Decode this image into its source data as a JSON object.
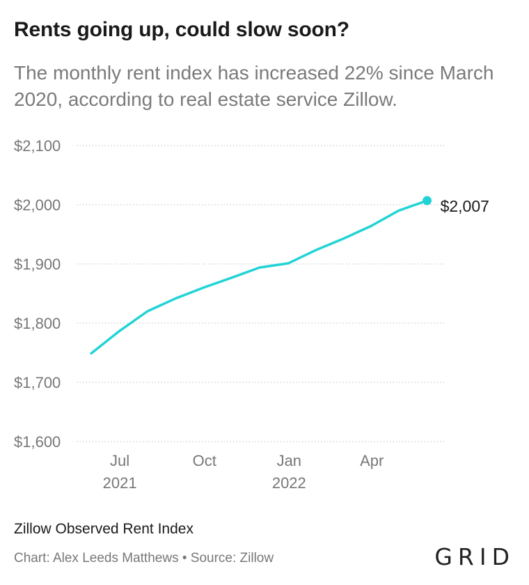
{
  "title": "Rents going up, could slow soon?",
  "subtitle": "The monthly rent index has increased 22% since March 2020, according to real estate service Zillow.",
  "footer": {
    "series_label": "Zillow Observed Rent Index",
    "credit": "Chart: Alex Leeds Matthews • Source: Zillow",
    "logo": "GRID"
  },
  "colors": {
    "line": "#22d3d6",
    "grid": "#cccccc"
  },
  "chart_data": {
    "type": "line",
    "title": "Rents going up, could slow soon?",
    "subtitle": "The monthly rent index has increased 22% since March 2020, according to real estate service Zillow.",
    "ylim": [
      1600,
      2100
    ],
    "xlim": [
      "2021-05-15",
      "2022-06-20"
    ],
    "yticks": [
      1600,
      1700,
      1800,
      1900,
      2000,
      2100
    ],
    "ytick_labels": [
      "$1,600",
      "$1,700",
      "$1,800",
      "$1,900",
      "$2,000",
      "$2,100"
    ],
    "xticks": [
      {
        "date": "2021-07-01",
        "label": "Jul",
        "sublabel": "2021"
      },
      {
        "date": "2021-10-01",
        "label": "Oct",
        "sublabel": ""
      },
      {
        "date": "2022-01-01",
        "label": "Jan",
        "sublabel": "2022"
      },
      {
        "date": "2022-04-01",
        "label": "Apr",
        "sublabel": ""
      }
    ],
    "grid": true,
    "series": [
      {
        "name": "Zillow Observed Rent Index",
        "x": [
          "2021-05-31",
          "2021-06-30",
          "2021-07-31",
          "2021-08-31",
          "2021-09-30",
          "2021-10-31",
          "2021-11-30",
          "2021-12-31",
          "2022-01-31",
          "2022-02-28",
          "2022-03-31",
          "2022-04-30",
          "2022-05-31"
        ],
        "values": [
          1749,
          1786,
          1820,
          1842,
          1860,
          1877,
          1894,
          1901,
          1924,
          1942,
          1964,
          1990,
          2007
        ]
      }
    ],
    "end_label": "$2,007"
  }
}
